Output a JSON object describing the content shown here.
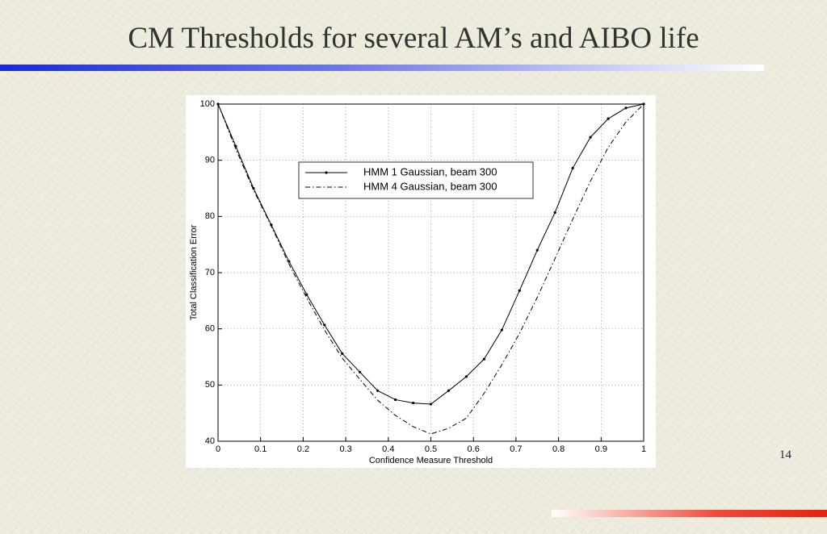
{
  "title": "CM Thresholds for several AM’s and AIBO life",
  "page_number": "14",
  "chart_data": {
    "type": "line",
    "xlabel": "Confidence Measure Threshold",
    "ylabel": "Total Classification Error",
    "x": [
      0,
      0.0417,
      0.0833,
      0.125,
      0.1667,
      0.2083,
      0.25,
      0.2917,
      0.3333,
      0.375,
      0.4167,
      0.4583,
      0.5,
      0.5417,
      0.5833,
      0.625,
      0.6667,
      0.7083,
      0.75,
      0.7917,
      0.8333,
      0.875,
      0.9167,
      0.9583,
      1
    ],
    "series": [
      {
        "name": "HMM 1 Gaussian, beam 300",
        "color": "#000000",
        "dash": "solid",
        "marker": true,
        "values": [
          100,
          92.5,
          85.0,
          78.5,
          72.0,
          66.1,
          60.7,
          55.6,
          52.3,
          49.0,
          47.4,
          46.8,
          46.6,
          49.0,
          51.5,
          54.6,
          59.8,
          66.8,
          74.0,
          80.7,
          88.6,
          94.1,
          97.4,
          99.3,
          100
        ]
      },
      {
        "name": "HMM 4 Gaussian, beam 300",
        "color": "#000000",
        "dash": "dashdot",
        "marker": false,
        "values": [
          100,
          92.0,
          84.7,
          78.3,
          71.5,
          65.5,
          59.8,
          54.8,
          51.0,
          47.3,
          44.6,
          42.6,
          41.3,
          42.3,
          44.1,
          48.5,
          53.6,
          59.2,
          65.6,
          72.5,
          79.5,
          86.3,
          92.3,
          96.8,
          100
        ]
      }
    ],
    "xlim": [
      0,
      1
    ],
    "xticks": [
      0,
      0.1,
      0.2,
      0.3,
      0.4,
      0.5,
      0.6,
      0.7,
      0.8,
      0.9,
      1
    ],
    "ylim": [
      40,
      100
    ],
    "yticks": [
      40,
      50,
      60,
      70,
      80,
      90,
      100
    ],
    "grid": true,
    "legend": "upper center"
  }
}
